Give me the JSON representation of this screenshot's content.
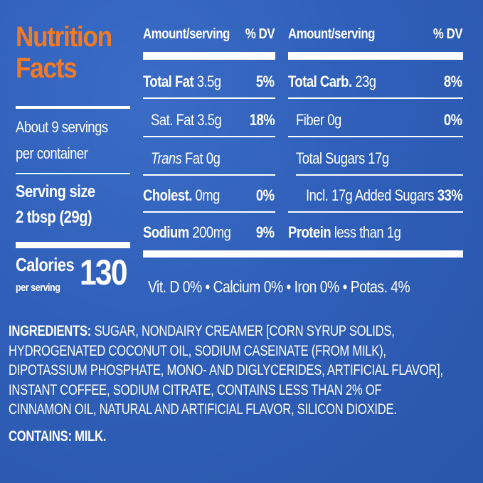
{
  "panel": {
    "title_line1": "Nutrition",
    "title_line2": "Facts",
    "servings_line1": "About 9 servings",
    "servings_line2": "per container",
    "serving_size_line1": "Serving size",
    "serving_size_line2": "2 tbsp (29g)",
    "calories_label": "Calories",
    "calories_sub": "per serving",
    "calories_value": "130"
  },
  "columns": {
    "left_header": "Amount/serving",
    "left_dv": "% DV",
    "right_header": "Amount/serving",
    "right_dv": "% DV"
  },
  "left_rows": {
    "total_fat": {
      "label": "Total Fat",
      "amount": "3.5g",
      "dv": "5%"
    },
    "sat_fat": {
      "label": "Sat. Fat",
      "amount": "3.5g",
      "dv": "18%"
    },
    "trans_fat": {
      "label": "Trans",
      "amount": "Fat 0g"
    },
    "cholest": {
      "label": "Cholest.",
      "amount": "0mg",
      "dv": "0%"
    },
    "sodium": {
      "label": "Sodium",
      "amount": "200mg",
      "dv": "9%"
    }
  },
  "right_rows": {
    "total_carb": {
      "label": "Total Carb.",
      "amount": "23g",
      "dv": "8%"
    },
    "fiber": {
      "label": "Fiber 0g",
      "dv": "0%"
    },
    "total_sugars": {
      "label": "Total Sugars 17g"
    },
    "added_sugars": {
      "label": "Incl. 17g Added Sugars",
      "dv": "33%"
    },
    "protein": {
      "label": "Protein",
      "amount": "less than 1g"
    }
  },
  "vitamins": "Vit. D 0% • Calcium 0% • Iron 0% • Potas. 4%",
  "ingredients": {
    "label": "INGREDIENTS:",
    "line1": "SUGAR, NONDAIRY CREAMER [CORN SYRUP SOLIDS,",
    "line2": "HYDROGENATED COCONUT OIL, SODIUM CASEINATE (FROM MILK),",
    "line3": "DIPOTASSIUM PHOSPHATE, MONO- AND DIGLYCERIDES, ARTIFICIAL FLAVOR],",
    "line4": "INSTANT COFFEE, SODIUM CITRATE, CONTAINS LESS THAN 2% OF",
    "line5": "CINNAMON OIL, NATURAL AND ARTIFICIAL FLAVOR, SILICON DIOXIDE.",
    "contains": "CONTAINS: MILK."
  }
}
